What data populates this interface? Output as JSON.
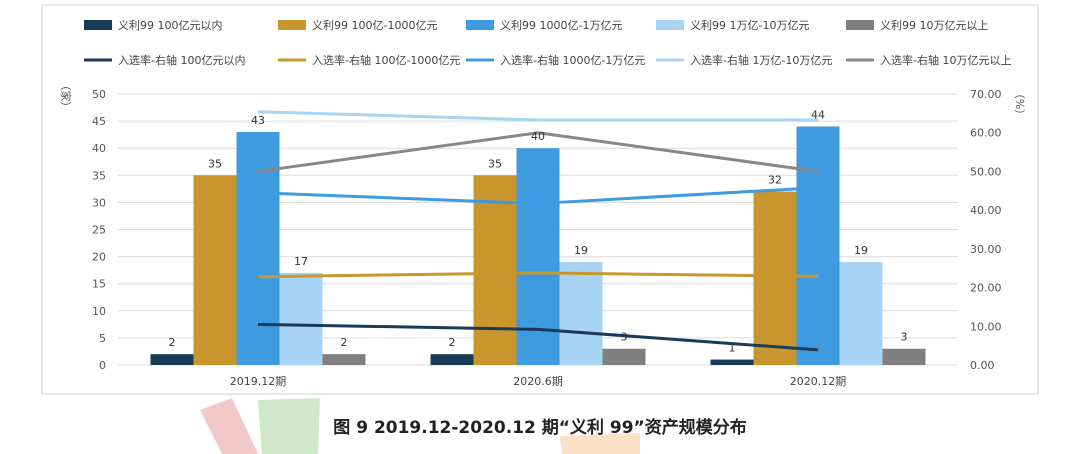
{
  "caption": "图 9 2019.12-2020.12 期“义利 99”资产规模分布",
  "chart_data": {
    "type": "bar",
    "categories": [
      "2019.12期",
      "2020.6期",
      "2020.12期"
    ],
    "y_left": {
      "label": "（家）",
      "range": [
        0,
        50
      ],
      "ticks": [
        "0",
        "5",
        "10",
        "15",
        "20",
        "25",
        "30",
        "35",
        "40",
        "45",
        "50"
      ]
    },
    "y_right": {
      "label": "（%）",
      "range": [
        0,
        70
      ],
      "ticks": [
        "0.00",
        "10.00",
        "20.00",
        "30.00",
        "40.00",
        "50.00",
        "60.00",
        "70.00"
      ]
    },
    "grid": true,
    "legend_position": "top",
    "bar_series": [
      {
        "name": "义利99 100亿元以内",
        "color": "#1a3a5a",
        "values": [
          2,
          2,
          1
        ],
        "labels": [
          "2",
          "2",
          "1"
        ]
      },
      {
        "name": "义利99 100亿-1000亿元",
        "color": "#c9962e",
        "values": [
          35,
          35,
          32
        ],
        "labels": [
          "35",
          "35",
          "32"
        ]
      },
      {
        "name": "义利99 1000亿-1万亿元",
        "color": "#3e9be0",
        "values": [
          43,
          40,
          44
        ],
        "labels": [
          "43",
          "40",
          "44"
        ]
      },
      {
        "name": "义利99 1万亿-10万亿元",
        "color": "#a8d3f2",
        "values": [
          17,
          19,
          19
        ],
        "labels": [
          "17",
          "19",
          "19"
        ]
      },
      {
        "name": "义利99 10万亿元以上",
        "color": "#7f7f7f",
        "values": [
          2,
          3,
          3
        ],
        "labels": [
          "2",
          "3",
          "3"
        ]
      }
    ],
    "line_series": [
      {
        "name": "入选率-右轴 100亿元以内",
        "color": "#1a3a5a",
        "values": [
          10.5,
          9.2,
          3.9
        ]
      },
      {
        "name": "入选率-右轴 100亿-1000亿元",
        "color": "#c9962e",
        "values": [
          22.8,
          23.8,
          22.9
        ]
      },
      {
        "name": "入选率-右轴 1000亿-1万亿元",
        "color": "#3e9be0",
        "values": [
          44.5,
          41.7,
          45.8
        ]
      },
      {
        "name": "入选率-右轴 1万亿-10万亿元",
        "color": "#a8d3f2",
        "values": [
          65.4,
          63.3,
          63.3
        ]
      },
      {
        "name": "入选率-右轴 10万亿元以上",
        "color": "#888888",
        "values": [
          50.0,
          60.0,
          50.0
        ]
      }
    ]
  }
}
